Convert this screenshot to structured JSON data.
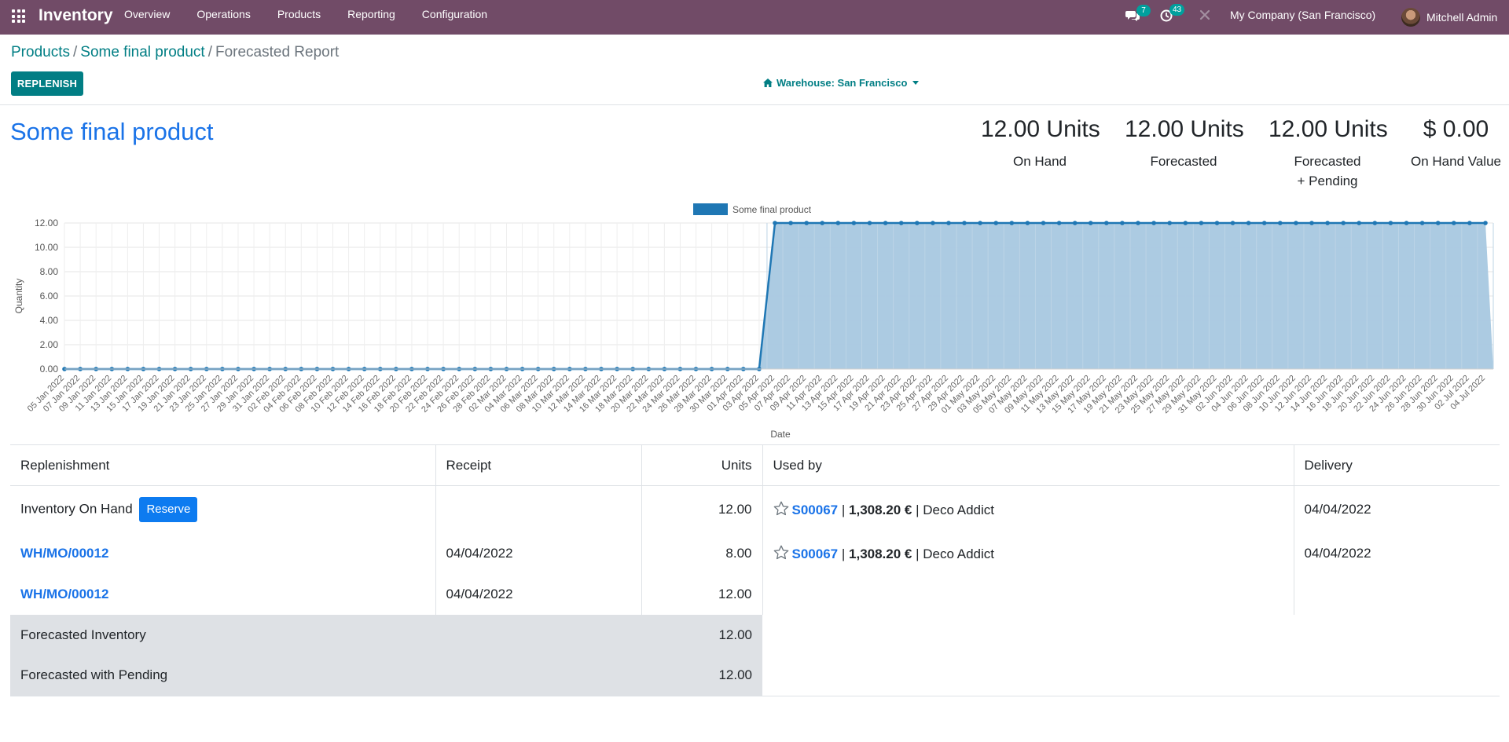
{
  "nav": {
    "app_name": "Inventory",
    "menu": [
      "Overview",
      "Operations",
      "Products",
      "Reporting",
      "Configuration"
    ],
    "messages_count": "7",
    "activities_count": "43",
    "company": "My Company (San Francisco)",
    "user": "Mitchell Admin",
    "accent": "#714b67"
  },
  "breadcrumb": {
    "root": "Products",
    "product": "Some final product",
    "current": "Forecasted Report",
    "separator": "/"
  },
  "toolbar": {
    "replenish_label": "REPLENISH",
    "warehouse_label": "Warehouse: San Francisco"
  },
  "product": {
    "name": "Some final product"
  },
  "kpis": [
    {
      "value": "12.00 Units",
      "label": "On Hand",
      "label2": ""
    },
    {
      "value": "12.00 Units",
      "label": "Forecasted",
      "label2": ""
    },
    {
      "value": "12.00 Units",
      "label": "Forecasted",
      "label2": "+ Pending"
    },
    {
      "value": "$ 0.00",
      "label": "On Hand Value",
      "label2": ""
    }
  ],
  "chart_data": {
    "type": "line",
    "series": [
      {
        "name": "Some final product",
        "color": "#1f77b4",
        "fill": "#a8c8e0",
        "start_date": "2022-01-05",
        "end_date": "2022-07-05",
        "step_date": "2022-04-04",
        "value_before": 0,
        "value_after": 12
      }
    ],
    "xlabel": "Date",
    "ylabel": "Quantity",
    "ylim": [
      0,
      12
    ],
    "yticks": [
      "0.00",
      "2.00",
      "4.00",
      "6.00",
      "8.00",
      "10.00",
      "12.00"
    ],
    "xtick_every_days": 2,
    "grid": true,
    "legend": "top"
  },
  "table": {
    "headers": {
      "replenishment": "Replenishment",
      "receipt": "Receipt",
      "units": "Units",
      "used_by": "Used by",
      "delivery": "Delivery"
    },
    "rows": [
      {
        "replenishment": "Inventory On Hand",
        "reserve_label": "Reserve",
        "receipt": "",
        "units": "12.00",
        "used_by_ref": "S00067",
        "used_by_sep": "|",
        "used_by_amount": "1,308.20 €",
        "used_by_partner": "Deco Addict",
        "delivery": "04/04/2022"
      },
      {
        "replenishment": "WH/MO/00012",
        "receipt": "04/04/2022",
        "units": "8.00",
        "used_by_ref": "S00067",
        "used_by_sep": "|",
        "used_by_amount": "1,308.20 €",
        "used_by_partner": "Deco Addict",
        "delivery": "04/04/2022"
      },
      {
        "replenishment": "WH/MO/00012",
        "receipt": "04/04/2022",
        "units": "12.00"
      }
    ],
    "summary": [
      {
        "label": "Forecasted Inventory",
        "value": "12.00"
      },
      {
        "label": "Forecasted with Pending",
        "value": "12.00"
      }
    ]
  }
}
